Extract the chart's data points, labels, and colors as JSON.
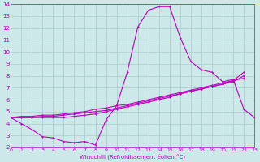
{
  "xlabel": "Windchill (Refroidissement éolien,°C)",
  "xlim": [
    0,
    23
  ],
  "ylim": [
    2,
    14
  ],
  "xticks": [
    0,
    1,
    2,
    3,
    4,
    5,
    6,
    7,
    8,
    9,
    10,
    11,
    12,
    13,
    14,
    15,
    16,
    17,
    18,
    19,
    20,
    21,
    22,
    23
  ],
  "yticks": [
    2,
    3,
    4,
    5,
    6,
    7,
    8,
    9,
    10,
    11,
    12,
    13,
    14
  ],
  "bg_color": "#cce8e8",
  "grid_color": "#aacccc",
  "line_color": "#bb00bb",
  "line1_x": [
    0,
    1,
    2,
    3,
    4,
    5,
    6,
    7,
    8,
    9,
    10,
    11,
    12,
    13,
    14,
    15,
    16,
    17,
    18,
    19,
    20,
    21,
    22,
    23
  ],
  "line1_y": [
    4.5,
    4.0,
    3.5,
    2.9,
    2.8,
    2.5,
    2.4,
    2.5,
    2.2,
    4.3,
    5.5,
    8.3,
    12.1,
    13.5,
    13.8,
    13.8,
    11.2,
    9.2,
    8.5,
    8.3,
    7.5,
    7.7,
    5.2,
    4.5
  ],
  "line2_x": [
    0,
    1,
    2,
    3,
    4,
    5,
    6,
    7,
    8,
    9,
    10,
    11,
    12,
    13,
    14,
    15,
    16,
    17,
    18,
    19,
    20,
    21,
    22
  ],
  "line2_y": [
    4.5,
    4.5,
    4.5,
    4.5,
    4.5,
    4.5,
    4.6,
    4.7,
    4.8,
    5.0,
    5.2,
    5.4,
    5.6,
    5.8,
    6.0,
    6.2,
    6.5,
    6.7,
    6.9,
    7.1,
    7.3,
    7.6,
    8.3
  ],
  "line3_x": [
    0,
    1,
    2,
    3,
    4,
    5,
    6,
    7,
    8,
    9,
    10,
    11,
    12,
    13,
    14,
    15,
    16,
    17,
    18,
    19,
    20,
    21,
    22
  ],
  "line3_y": [
    4.5,
    4.5,
    4.5,
    4.6,
    4.6,
    4.7,
    4.8,
    4.9,
    5.0,
    5.1,
    5.3,
    5.5,
    5.7,
    5.9,
    6.1,
    6.3,
    6.5,
    6.7,
    6.9,
    7.1,
    7.3,
    7.5,
    8.0
  ],
  "line4_x": [
    0,
    1,
    2,
    3,
    4,
    5,
    6,
    7,
    8,
    9,
    10,
    11,
    12,
    13,
    14,
    15,
    16,
    17,
    18,
    19,
    20,
    21,
    22
  ],
  "line4_y": [
    4.5,
    4.6,
    4.6,
    4.7,
    4.7,
    4.8,
    4.9,
    5.0,
    5.2,
    5.3,
    5.5,
    5.6,
    5.8,
    6.0,
    6.2,
    6.4,
    6.6,
    6.8,
    7.0,
    7.2,
    7.4,
    7.6,
    7.8
  ]
}
